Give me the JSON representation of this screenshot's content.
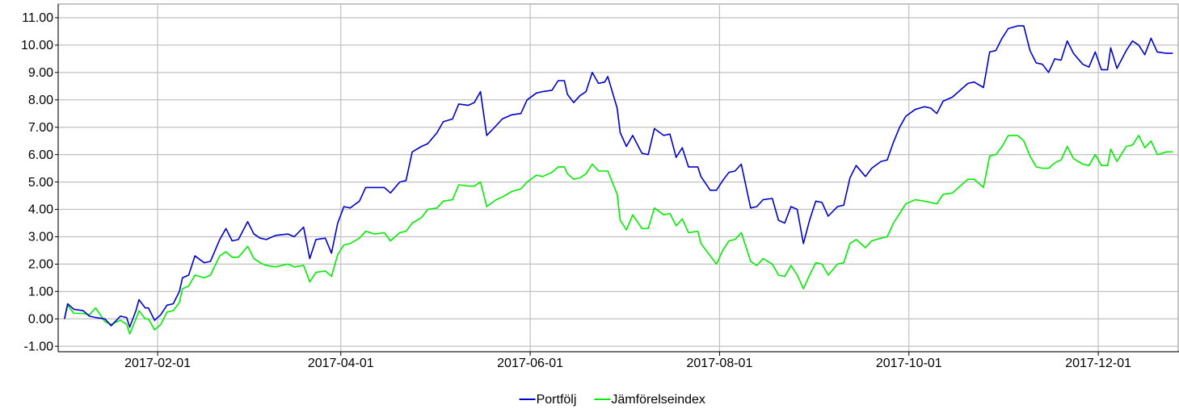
{
  "chart_data": {
    "type": "line",
    "x": [
      "2017-01-02",
      "2017-01-03",
      "2017-01-05",
      "2017-01-08",
      "2017-01-10",
      "2017-01-12",
      "2017-01-15",
      "2017-01-17",
      "2017-01-20",
      "2017-01-22",
      "2017-01-23",
      "2017-01-25",
      "2017-01-26",
      "2017-01-28",
      "2017-01-29",
      "2017-01-31",
      "2017-02-02",
      "2017-02-04",
      "2017-02-06",
      "2017-02-08",
      "2017-02-09",
      "2017-02-11",
      "2017-02-13",
      "2017-02-16",
      "2017-02-18",
      "2017-02-21",
      "2017-02-23",
      "2017-02-25",
      "2017-02-27",
      "2017-03-02",
      "2017-03-04",
      "2017-03-06",
      "2017-03-08",
      "2017-03-11",
      "2017-03-15",
      "2017-03-17",
      "2017-03-20",
      "2017-03-22",
      "2017-03-24",
      "2017-03-27",
      "2017-03-29",
      "2017-03-31",
      "2017-04-02",
      "2017-04-04",
      "2017-04-07",
      "2017-04-09",
      "2017-04-12",
      "2017-04-15",
      "2017-04-17",
      "2017-04-20",
      "2017-04-22",
      "2017-04-24",
      "2017-04-27",
      "2017-04-29",
      "2017-05-02",
      "2017-05-04",
      "2017-05-07",
      "2017-05-09",
      "2017-05-12",
      "2017-05-14",
      "2017-05-16",
      "2017-05-18",
      "2017-05-21",
      "2017-05-23",
      "2017-05-26",
      "2017-05-29",
      "2017-05-31",
      "2017-06-03",
      "2017-06-05",
      "2017-06-08",
      "2017-06-10",
      "2017-06-12",
      "2017-06-13",
      "2017-06-15",
      "2017-06-17",
      "2017-06-19",
      "2017-06-21",
      "2017-06-23",
      "2017-06-25",
      "2017-06-26",
      "2017-06-29",
      "2017-06-30",
      "2017-07-02",
      "2017-07-04",
      "2017-07-07",
      "2017-07-09",
      "2017-07-11",
      "2017-07-14",
      "2017-07-16",
      "2017-07-18",
      "2017-07-20",
      "2017-07-22",
      "2017-07-25",
      "2017-07-26",
      "2017-07-29",
      "2017-07-31",
      "2017-08-02",
      "2017-08-04",
      "2017-08-06",
      "2017-08-08",
      "2017-08-11",
      "2017-08-13",
      "2017-08-15",
      "2017-08-18",
      "2017-08-20",
      "2017-08-22",
      "2017-08-24",
      "2017-08-26",
      "2017-08-28",
      "2017-08-30",
      "2017-09-01",
      "2017-09-03",
      "2017-09-05",
      "2017-09-08",
      "2017-09-10",
      "2017-09-12",
      "2017-09-14",
      "2017-09-17",
      "2017-09-19",
      "2017-09-22",
      "2017-09-24",
      "2017-09-26",
      "2017-09-28",
      "2017-09-30",
      "2017-10-03",
      "2017-10-06",
      "2017-10-08",
      "2017-10-10",
      "2017-10-12",
      "2017-10-15",
      "2017-10-17",
      "2017-10-20",
      "2017-10-22",
      "2017-10-25",
      "2017-10-27",
      "2017-10-29",
      "2017-10-31",
      "2017-11-02",
      "2017-11-05",
      "2017-11-07",
      "2017-11-09",
      "2017-11-11",
      "2017-11-13",
      "2017-11-15",
      "2017-11-17",
      "2017-11-19",
      "2017-11-21",
      "2017-11-23",
      "2017-11-26",
      "2017-11-28",
      "2017-11-30",
      "2017-12-02",
      "2017-12-04",
      "2017-12-05",
      "2017-12-07",
      "2017-12-10",
      "2017-12-12",
      "2017-12-14",
      "2017-12-16",
      "2017-12-18",
      "2017-12-20",
      "2017-12-23",
      "2017-12-25"
    ],
    "series": [
      {
        "name": "Portfölj",
        "color": "#0000cc",
        "values": [
          0,
          0.55,
          0.35,
          0.3,
          0.1,
          0.05,
          0.0,
          -0.25,
          0.1,
          0.05,
          -0.3,
          0.3,
          0.7,
          0.4,
          0.4,
          -0.05,
          0.15,
          0.5,
          0.55,
          1.0,
          1.5,
          1.6,
          2.3,
          2.05,
          2.1,
          2.9,
          3.3,
          2.85,
          2.9,
          3.55,
          3.1,
          2.95,
          2.9,
          3.05,
          3.1,
          3.0,
          3.35,
          2.2,
          2.9,
          2.95,
          2.4,
          3.5,
          4.1,
          4.05,
          4.3,
          4.8,
          4.8,
          4.8,
          4.6,
          5.0,
          5.05,
          6.1,
          6.3,
          6.4,
          6.8,
          7.2,
          7.3,
          7.85,
          7.8,
          7.9,
          8.3,
          6.7,
          7.05,
          7.3,
          7.45,
          7.5,
          8.0,
          8.25,
          8.3,
          8.35,
          8.7,
          8.7,
          8.2,
          7.9,
          8.15,
          8.3,
          9.0,
          8.6,
          8.65,
          8.85,
          7.7,
          6.8,
          6.3,
          6.7,
          6.05,
          6.0,
          6.95,
          6.7,
          6.75,
          5.9,
          6.25,
          5.55,
          5.55,
          5.2,
          4.7,
          4.7,
          5.05,
          5.35,
          5.4,
          5.65,
          4.05,
          4.1,
          4.35,
          4.4,
          3.6,
          3.5,
          4.1,
          4.0,
          2.75,
          3.6,
          4.3,
          4.25,
          3.75,
          4.1,
          4.15,
          5.15,
          5.6,
          5.2,
          5.5,
          5.75,
          5.8,
          6.45,
          7.0,
          7.4,
          7.65,
          7.75,
          7.7,
          7.5,
          7.95,
          8.1,
          8.3,
          8.6,
          8.65,
          8.45,
          9.75,
          9.8,
          10.25,
          10.6,
          10.7,
          10.7,
          9.8,
          9.35,
          9.3,
          9.0,
          9.5,
          9.45,
          10.15,
          9.7,
          9.3,
          9.2,
          9.75,
          9.1,
          9.1,
          9.9,
          9.15,
          9.8,
          10.15,
          10.0,
          9.65,
          10.25,
          9.75,
          9.7,
          9.7
        ]
      },
      {
        "name": "Jämförelseindex",
        "color": "#00ee00",
        "values": [
          0,
          0.5,
          0.2,
          0.2,
          0.15,
          0.4,
          -0.1,
          -0.2,
          -0.05,
          -0.2,
          -0.55,
          0.0,
          0.3,
          0.0,
          0.0,
          -0.4,
          -0.2,
          0.25,
          0.3,
          0.6,
          1.1,
          1.2,
          1.6,
          1.5,
          1.6,
          2.3,
          2.45,
          2.25,
          2.25,
          2.65,
          2.2,
          2.05,
          1.95,
          1.9,
          2.0,
          1.9,
          1.95,
          1.35,
          1.7,
          1.75,
          1.55,
          2.35,
          2.7,
          2.75,
          2.95,
          3.2,
          3.1,
          3.15,
          2.85,
          3.15,
          3.2,
          3.5,
          3.7,
          4.0,
          4.05,
          4.3,
          4.35,
          4.9,
          4.85,
          4.85,
          5.0,
          4.1,
          4.35,
          4.45,
          4.65,
          4.75,
          5.0,
          5.25,
          5.2,
          5.35,
          5.55,
          5.55,
          5.3,
          5.1,
          5.15,
          5.3,
          5.65,
          5.4,
          5.4,
          5.4,
          4.55,
          3.6,
          3.25,
          3.8,
          3.3,
          3.3,
          4.05,
          3.8,
          3.85,
          3.4,
          3.65,
          3.15,
          3.2,
          2.75,
          2.3,
          2.0,
          2.5,
          2.85,
          2.9,
          3.15,
          2.1,
          1.95,
          2.2,
          2.0,
          1.6,
          1.55,
          1.95,
          1.6,
          1.1,
          1.6,
          2.05,
          2.0,
          1.6,
          2.0,
          2.05,
          2.75,
          2.9,
          2.6,
          2.85,
          2.95,
          3.0,
          3.5,
          3.85,
          4.2,
          4.35,
          4.3,
          4.25,
          4.2,
          4.55,
          4.6,
          4.8,
          5.1,
          5.1,
          4.8,
          5.95,
          6.0,
          6.3,
          6.7,
          6.7,
          6.5,
          5.95,
          5.55,
          5.5,
          5.5,
          5.7,
          5.8,
          6.3,
          5.85,
          5.65,
          5.6,
          6.0,
          5.6,
          5.6,
          6.2,
          5.75,
          6.3,
          6.35,
          6.7,
          6.25,
          6.5,
          6.0,
          6.1,
          6.1
        ]
      }
    ],
    "xlim": [
      "2017-01-01",
      "2017-12-27"
    ],
    "xticks": [
      "2017-02-01",
      "2017-04-01",
      "2017-06-01",
      "2017-08-01",
      "2017-10-01",
      "2017-12-01"
    ],
    "ylim": [
      -1.2,
      11.5
    ],
    "yticks": [
      {
        "value": -1,
        "label": "-1.00"
      },
      {
        "value": 0,
        "label": "0.00"
      },
      {
        "value": 1,
        "label": "1.00"
      },
      {
        "value": 2,
        "label": "2.00"
      },
      {
        "value": 3,
        "label": "3.00"
      },
      {
        "value": 4,
        "label": "4.00"
      },
      {
        "value": 5,
        "label": "5.00"
      },
      {
        "value": 6,
        "label": "6.00"
      },
      {
        "value": 7,
        "label": "7.00"
      },
      {
        "value": 8,
        "label": "8.00"
      },
      {
        "value": 9,
        "label": "9.00"
      },
      {
        "value": 10,
        "label": "10.00"
      },
      {
        "value": 11,
        "label": "11.00"
      }
    ],
    "grid": true,
    "legend": "bottom"
  }
}
